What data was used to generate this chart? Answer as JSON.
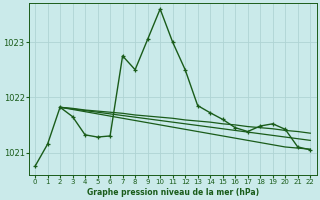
{
  "xlabel": "Graphe pression niveau de la mer (hPa)",
  "xlim": [
    -0.5,
    22.5
  ],
  "ylim": [
    1020.6,
    1023.7
  ],
  "yticks": [
    1021,
    1022,
    1023
  ],
  "xticks": [
    0,
    1,
    2,
    3,
    4,
    5,
    6,
    7,
    8,
    9,
    10,
    11,
    12,
    13,
    14,
    15,
    16,
    17,
    18,
    19,
    20,
    21,
    22
  ],
  "background_color": "#caeaea",
  "grid_color": "#afd4d4",
  "line_color": "#1a5c1a",
  "main_line": {
    "x": [
      0,
      1,
      2,
      3,
      4,
      5,
      6,
      7,
      8,
      9,
      10,
      11,
      12,
      13,
      14,
      15,
      16,
      17,
      18,
      19,
      20,
      21,
      22
    ],
    "y": [
      1020.75,
      1021.15,
      1021.82,
      1021.65,
      1021.32,
      1021.28,
      1021.3,
      1022.75,
      1022.5,
      1023.05,
      1023.6,
      1023.0,
      1022.5,
      1021.85,
      1021.72,
      1021.6,
      1021.45,
      1021.38,
      1021.48,
      1021.52,
      1021.42,
      1021.1,
      1021.05
    ]
  },
  "flat_lines": [
    {
      "x": [
        2,
        3,
        4,
        5,
        6,
        7,
        8,
        9,
        10,
        11,
        12,
        13,
        14,
        15,
        16,
        17,
        18,
        19,
        20,
        21,
        22
      ],
      "y": [
        1021.82,
        1021.78,
        1021.74,
        1021.7,
        1021.66,
        1021.62,
        1021.58,
        1021.54,
        1021.5,
        1021.46,
        1021.42,
        1021.38,
        1021.34,
        1021.3,
        1021.26,
        1021.22,
        1021.18,
        1021.14,
        1021.1,
        1021.08,
        1021.06
      ]
    },
    {
      "x": [
        2,
        3,
        4,
        5,
        6,
        7,
        8,
        9,
        10,
        11,
        12,
        13,
        14,
        15,
        16,
        17,
        18,
        19,
        20,
        21,
        22
      ],
      "y": [
        1021.82,
        1021.79,
        1021.76,
        1021.73,
        1021.7,
        1021.67,
        1021.64,
        1021.61,
        1021.58,
        1021.55,
        1021.52,
        1021.49,
        1021.46,
        1021.43,
        1021.4,
        1021.37,
        1021.34,
        1021.31,
        1021.28,
        1021.25,
        1021.22
      ]
    },
    {
      "x": [
        2,
        3,
        4,
        5,
        6,
        7,
        8,
        9,
        10,
        11,
        12,
        13,
        14,
        15,
        16,
        17,
        18,
        19,
        20,
        21,
        22
      ],
      "y": [
        1021.82,
        1021.8,
        1021.77,
        1021.75,
        1021.73,
        1021.71,
        1021.68,
        1021.66,
        1021.64,
        1021.62,
        1021.59,
        1021.57,
        1021.55,
        1021.52,
        1021.5,
        1021.47,
        1021.45,
        1021.43,
        1021.4,
        1021.38,
        1021.35
      ]
    }
  ]
}
